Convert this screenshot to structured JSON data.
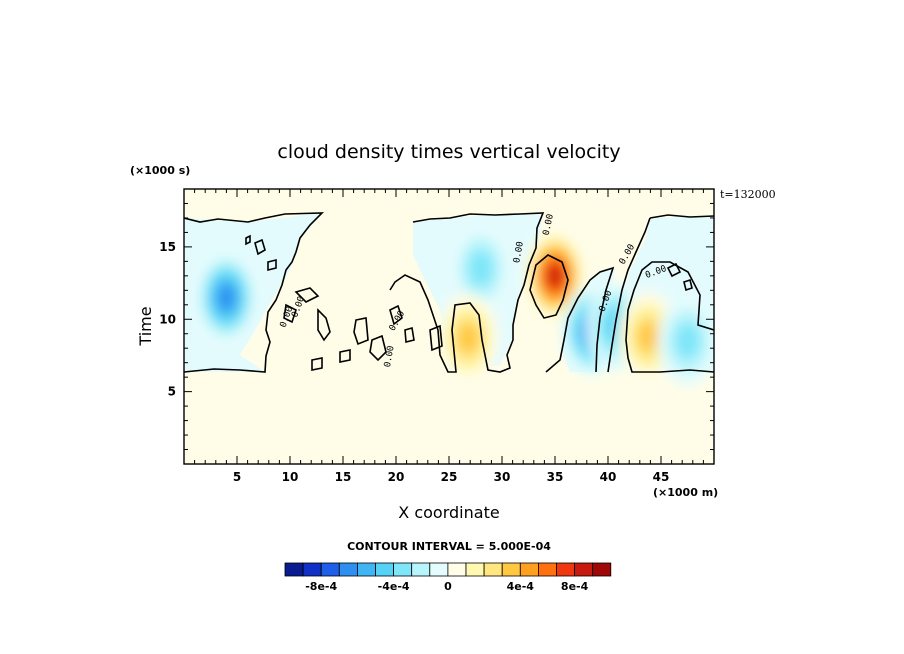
{
  "chart_data": {
    "type": "heatmap",
    "title": "cloud density times vertical velocity",
    "xlabel": "X coordinate",
    "ylabel": "Time",
    "x_unit": "(×1000 m)",
    "y_unit": "(×1000 s)",
    "time_annotation": "t=132000",
    "xlim": [
      0,
      50
    ],
    "ylim": [
      0,
      19
    ],
    "x_ticks": [
      5,
      10,
      15,
      20,
      25,
      30,
      35,
      40,
      45
    ],
    "y_ticks": [
      5,
      10,
      15
    ],
    "contour_label": "0.00",
    "contour_interval_text": "CONTOUR INTERVAL = 5.000E-04",
    "colorbar": {
      "labels": [
        "-8e-4",
        "-4e-4",
        "0",
        "4e-4",
        "8e-4"
      ],
      "colors": [
        "#0a1a90",
        "#1030c8",
        "#1f5ee8",
        "#2f8ff0",
        "#3fb5f5",
        "#55d2f5",
        "#7ee6f8",
        "#b8f4fb",
        "#e4fcfd",
        "#fffce8",
        "#fff8b0",
        "#ffe680",
        "#ffc840",
        "#ffa020",
        "#ff7010",
        "#f03810",
        "#c81a10",
        "#a00808"
      ]
    },
    "features": [
      {
        "x": 4.0,
        "y": 11.5,
        "value": -0.0006
      },
      {
        "x": 28.0,
        "y": 13.5,
        "value": -0.0003
      },
      {
        "x": 26.8,
        "y": 8.7,
        "value": 0.0004
      },
      {
        "x": 35.0,
        "y": 13.0,
        "value": 0.00075
      },
      {
        "x": 38.5,
        "y": 9.2,
        "value": -0.00055
      },
      {
        "x": 40.8,
        "y": 9.5,
        "value": -0.0004
      },
      {
        "x": 43.8,
        "y": 8.8,
        "value": 0.0004
      },
      {
        "x": 47.5,
        "y": 8.5,
        "value": -0.0003
      }
    ]
  }
}
